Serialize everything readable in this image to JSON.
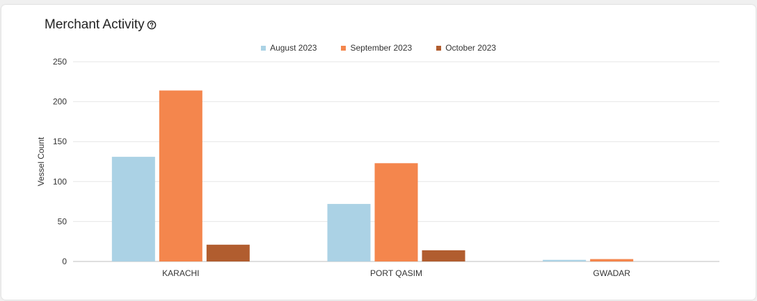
{
  "card": {
    "title": "Merchant Activity",
    "help_icon": "question-circle-icon"
  },
  "chart_data": {
    "type": "bar",
    "title": "Merchant Activity",
    "xlabel": "",
    "ylabel": "Vessel Count",
    "ylim": [
      0,
      250
    ],
    "yticks": [
      0,
      50,
      100,
      150,
      200,
      250
    ],
    "categories": [
      "KARACHI",
      "PORT QASIM",
      "GWADAR"
    ],
    "series": [
      {
        "name": "August 2023",
        "color": "#abd2e5",
        "values": [
          131,
          72,
          2
        ]
      },
      {
        "name": "September 2023",
        "color": "#f4864d",
        "values": [
          214,
          123,
          3
        ]
      },
      {
        "name": "October 2023",
        "color": "#b15d2f",
        "values": [
          21,
          14,
          0
        ]
      }
    ],
    "grid": true,
    "legend_position": "top-center"
  }
}
